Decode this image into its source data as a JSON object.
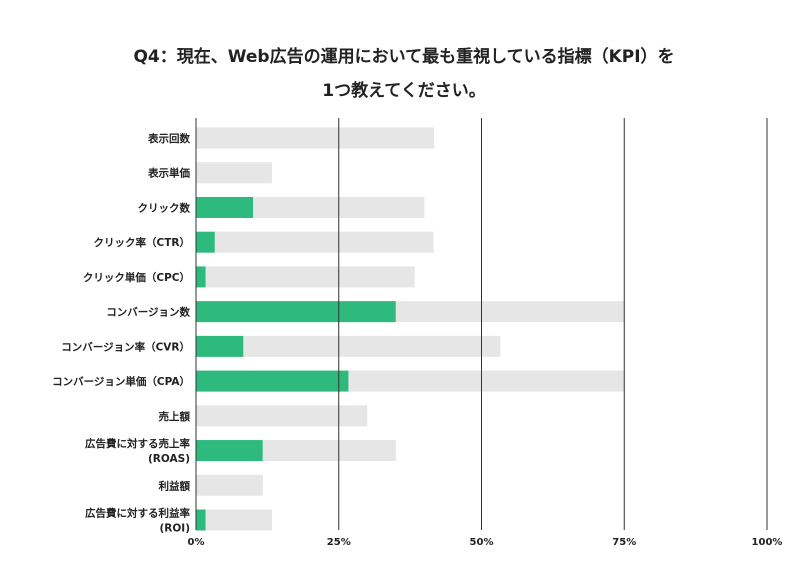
{
  "chart_data": {
    "type": "bar",
    "orientation": "horizontal",
    "stacked": true,
    "title_lines": [
      "Q4：現在、Web広告の運用において最も重視している指標（KPI）を",
      "1つ教えてください。"
    ],
    "categories": [
      [
        "表示回数"
      ],
      [
        "表示単価"
      ],
      [
        "クリック数"
      ],
      [
        "クリック率（CTR）"
      ],
      [
        "クリック単価（CPC）"
      ],
      [
        "コンバージョン数"
      ],
      [
        "コンバージョン率（CVR）"
      ],
      [
        "コンバージョン単価（CPA）"
      ],
      [
        "売上額"
      ],
      [
        "広告費に対する売上率",
        "(ROAS)"
      ],
      [
        "利益額"
      ],
      [
        "広告費に対する利益率",
        "(ROI)"
      ]
    ],
    "series": [
      {
        "values": [
          0,
          0,
          10,
          3.3,
          1.7,
          35,
          8.3,
          26.7,
          0,
          11.7,
          0,
          1.7
        ]
      },
      {
        "values": [
          41.7,
          13.3,
          30,
          38.3,
          36.6,
          40,
          45,
          48.3,
          30,
          23.3,
          11.7,
          11.6
        ]
      }
    ],
    "xlim": [
      0,
      100
    ],
    "xticks": [
      "0%",
      "25%",
      "50%",
      "75%",
      "100%"
    ],
    "grid": true,
    "colors": {
      "highlight": "#2dba7c",
      "rest": "#e6e6e6",
      "grid": "#333333"
    }
  }
}
